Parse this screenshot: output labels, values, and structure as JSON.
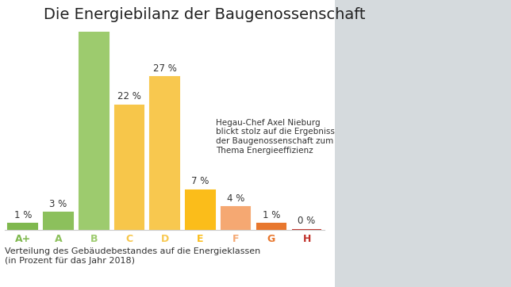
{
  "chart_data": {
    "type": "bar",
    "title": "Die Energiebilanz der Baugenossenschaft",
    "categories": [
      "A+",
      "A",
      "B",
      "C",
      "D",
      "E",
      "F",
      "G",
      "H"
    ],
    "values": [
      1,
      3,
      35,
      22,
      27,
      7,
      4,
      1,
      0
    ],
    "value_labels": [
      "1 %",
      "3 %",
      null,
      "22 %",
      "27 %",
      "7 %",
      "4 %",
      "1 %",
      "0 %"
    ],
    "colors": [
      "#7fb84e",
      "#8cc05c",
      "#9dcb6e",
      "#f7c64a",
      "#f8c84f",
      "#fbbd1a",
      "#f5a872",
      "#e8772e",
      "#c0322b"
    ],
    "ylim": [
      0,
      35
    ],
    "data_labels": true,
    "tick_labels": "x",
    "annotations": [
      "Hegau-Chef Axel Nieburg\nblickt stolz auf die Ergebnisse\nder Baugenossenschaft zum\nThema Energieeffizienz"
    ],
    "xlabel": "Verteilung des Gebäudebestandes auf die Energieklassen\n(in Prozent für das Jahr 2018)"
  }
}
